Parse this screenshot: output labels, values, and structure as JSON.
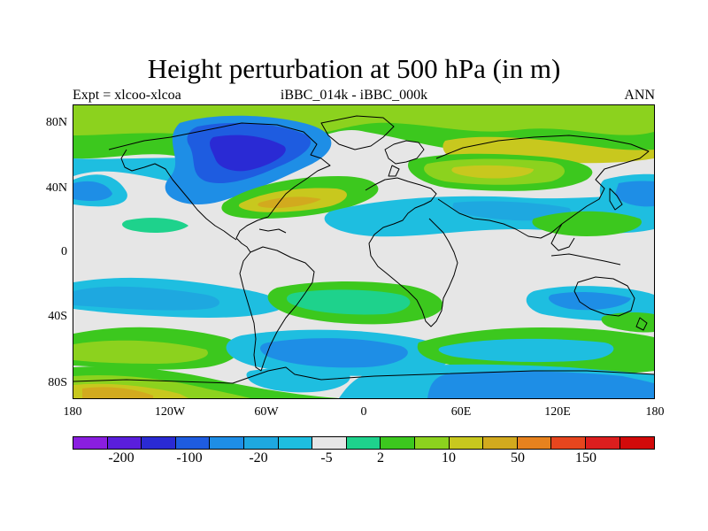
{
  "title": "Height perturbation at 500 hPa (in m)",
  "left_label": "Expt = xlcoo-xlcoa",
  "center_label": "iBBC_014k - iBBC_000k",
  "right_label": "ANN",
  "lat_labels": [
    "80N",
    "40N",
    "0",
    "40S",
    "80S"
  ],
  "lon_labels": [
    "180",
    "120W",
    "60W",
    "0",
    "60E",
    "120E",
    "180"
  ],
  "colorbar": {
    "colors": [
      "#8a1ee0",
      "#5a1edc",
      "#2a2ad4",
      "#1e5ce0",
      "#1e8ee6",
      "#1ea8e0",
      "#1ebee0",
      "#e6e6e6",
      "#1ed28c",
      "#3cc81e",
      "#8cd21e",
      "#c8c81e",
      "#d2aa1e",
      "#e6821e",
      "#e6461e",
      "#dc1e1e",
      "#d20a0a"
    ],
    "labels": [
      "-200",
      "-100",
      "-20",
      "-5",
      "2",
      "10",
      "50",
      "150"
    ]
  },
  "palette": {
    "background": "#e6e6e6",
    "coastline": "#000000"
  }
}
